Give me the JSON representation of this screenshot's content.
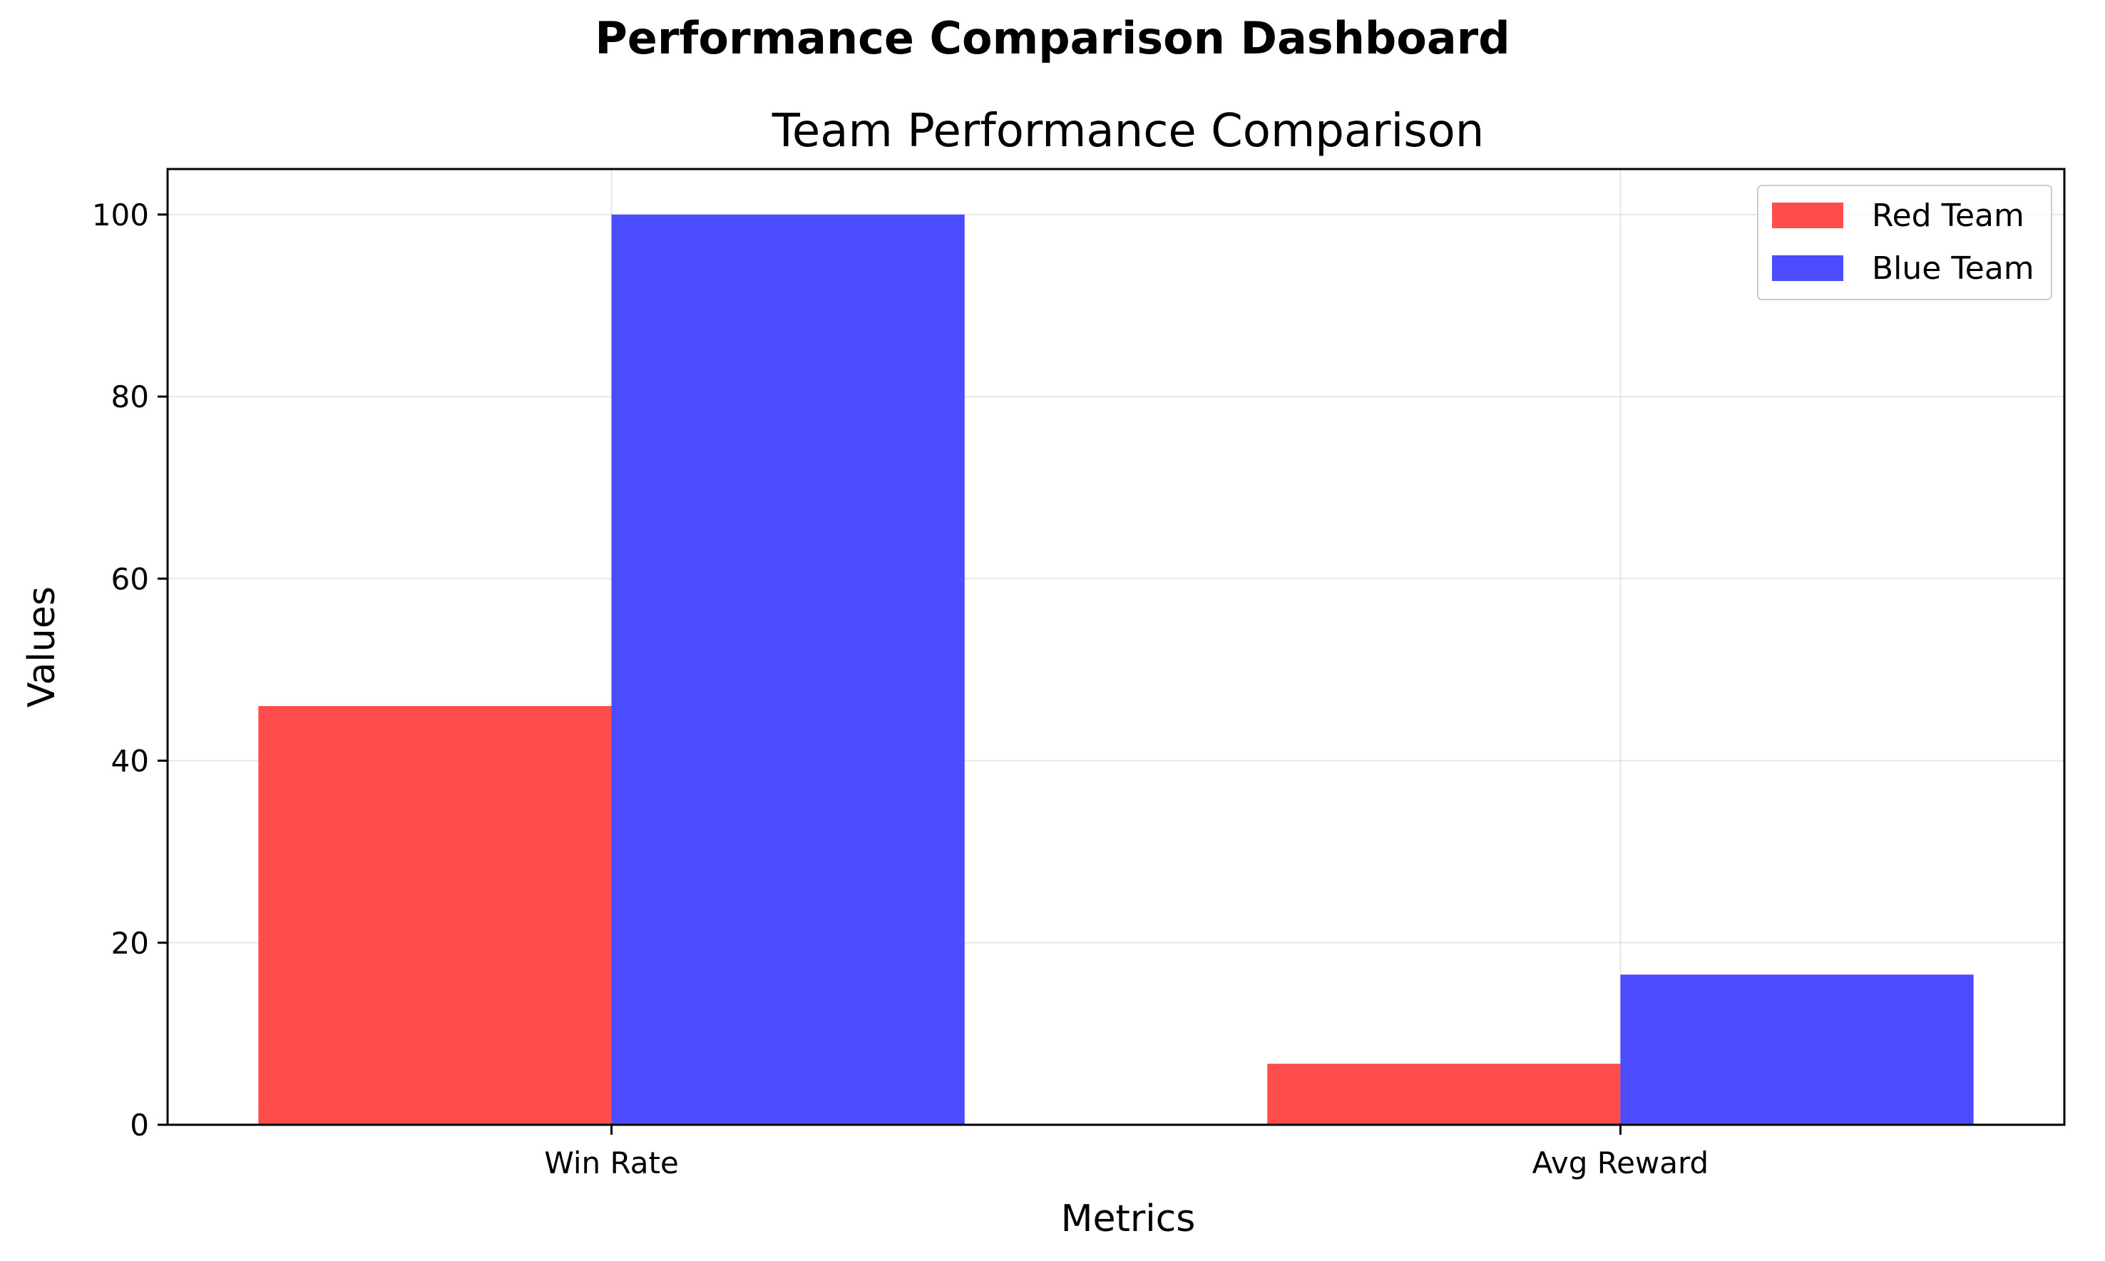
{
  "suptitle": "Performance Comparison Dashboard",
  "chart_data": {
    "type": "bar",
    "title": "Team Performance Comparison",
    "xlabel": "Metrics",
    "ylabel": "Values",
    "categories": [
      "Win Rate",
      "Avg Reward"
    ],
    "series": [
      {
        "name": "Red Team",
        "values": [
          46.0,
          6.7
        ],
        "color": "#ff4c4c"
      },
      {
        "name": "Blue Team",
        "values": [
          100.0,
          16.5
        ],
        "color": "#4c4cff"
      }
    ],
    "ylim": [
      0,
      105
    ],
    "yticks": [
      0,
      20,
      40,
      60,
      80,
      100
    ],
    "grid": true,
    "legend_position": "top-right"
  }
}
